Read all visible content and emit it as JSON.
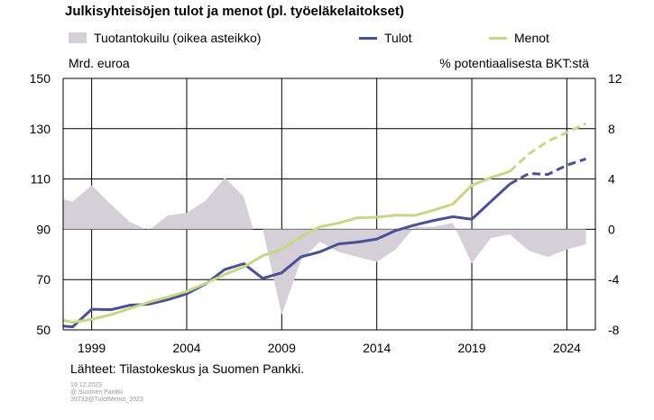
{
  "chart_data": {
    "type": "line",
    "title": "Julkisyhteisöjen tulot ja menot (pl. työeläkelaitokset)",
    "left_unit": "Mrd. euroa",
    "right_unit": "% potentiaalisesta BKT:stä",
    "ylim": [
      50,
      150
    ],
    "y_ticks": [
      50,
      70,
      90,
      110,
      130,
      150
    ],
    "y2lim": [
      -8,
      12
    ],
    "y2_ticks": [
      -8,
      -4,
      0,
      4,
      8,
      12
    ],
    "xlim": [
      1997.5,
      2025.5
    ],
    "x_ticks": [
      1999,
      2004,
      2009,
      2014,
      2019,
      2024
    ],
    "grid": true,
    "legend_position": "top",
    "forecast_start": 2022,
    "series": [
      {
        "name": "Tuotantokuilu (oikea asteikko)",
        "type": "area",
        "axis": "right",
        "color": "#d5d0d8",
        "x": [
          1997.5,
          1998,
          1999,
          2000,
          2001,
          2002,
          2003,
          2004,
          2005,
          2006,
          2007,
          2007.5,
          2008,
          2009,
          2010,
          2011,
          2012,
          2013,
          2014,
          2015,
          2016,
          2017,
          2018,
          2019,
          2020,
          2021,
          2022,
          2023,
          2024,
          2025
        ],
        "values": [
          2.4,
          2.2,
          3.5,
          2.0,
          0.6,
          -0.1,
          1.1,
          1.3,
          2.3,
          4.1,
          2.6,
          0,
          0,
          -6.8,
          -2.5,
          -1.0,
          -1.8,
          -2.2,
          -2.6,
          -1.6,
          0.2,
          0.2,
          0.5,
          -2.7,
          -0.7,
          -0.4,
          -1.7,
          -2.2,
          -1.6,
          -1.2
        ]
      },
      {
        "name": "Tulot",
        "type": "line",
        "axis": "left",
        "color": "#4a4f96",
        "x": [
          1997.5,
          1998,
          1999,
          2000,
          2001,
          2002,
          2003,
          2004,
          2005,
          2006,
          2007,
          2008,
          2009,
          2010,
          2011,
          2012,
          2013,
          2014,
          2015,
          2016,
          2017,
          2018,
          2019,
          2020,
          2021,
          2022,
          2023,
          2024,
          2025
        ],
        "values": [
          51.5,
          51.2,
          58.2,
          58.0,
          59.8,
          60.2,
          62.0,
          64.3,
          68.3,
          74.0,
          76.3,
          70.5,
          72.7,
          79.0,
          81.0,
          84.2,
          84.9,
          86.1,
          89.5,
          91.7,
          93.5,
          95.0,
          94.0,
          101.0,
          108.0,
          112.2,
          111.8,
          115.5,
          118.0
        ]
      },
      {
        "name": "Menot",
        "type": "line",
        "axis": "left",
        "color": "#c4d886",
        "x": [
          1997.5,
          1998,
          1999,
          2000,
          2001,
          2002,
          2003,
          2004,
          2005,
          2006,
          2007,
          2008,
          2009,
          2010,
          2011,
          2012,
          2013,
          2014,
          2015,
          2016,
          2017,
          2018,
          2019,
          2020,
          2021,
          2022,
          2023,
          2024,
          2025
        ],
        "values": [
          53.8,
          53.0,
          54.2,
          56.0,
          58.5,
          61.0,
          63.0,
          65.3,
          68.5,
          72.0,
          75.0,
          79.5,
          82.0,
          87.0,
          91.0,
          92.5,
          94.6,
          94.8,
          95.6,
          95.5,
          97.6,
          100.0,
          107.5,
          110.5,
          113.0,
          120.0,
          125.0,
          128.5,
          132.0
        ]
      }
    ],
    "source": "Lähteet: Tilastokeskus ja Suomen Pankki."
  },
  "legend": {
    "area_label": "Tuotantokuilu (oikea asteikko)",
    "line1_label": "Tulot",
    "line2_label": "Menot"
  },
  "meta": {
    "date": "19.12.2023",
    "copyright": "@ Suomen Pankki",
    "id": "39733@TulotMenot_2023"
  }
}
